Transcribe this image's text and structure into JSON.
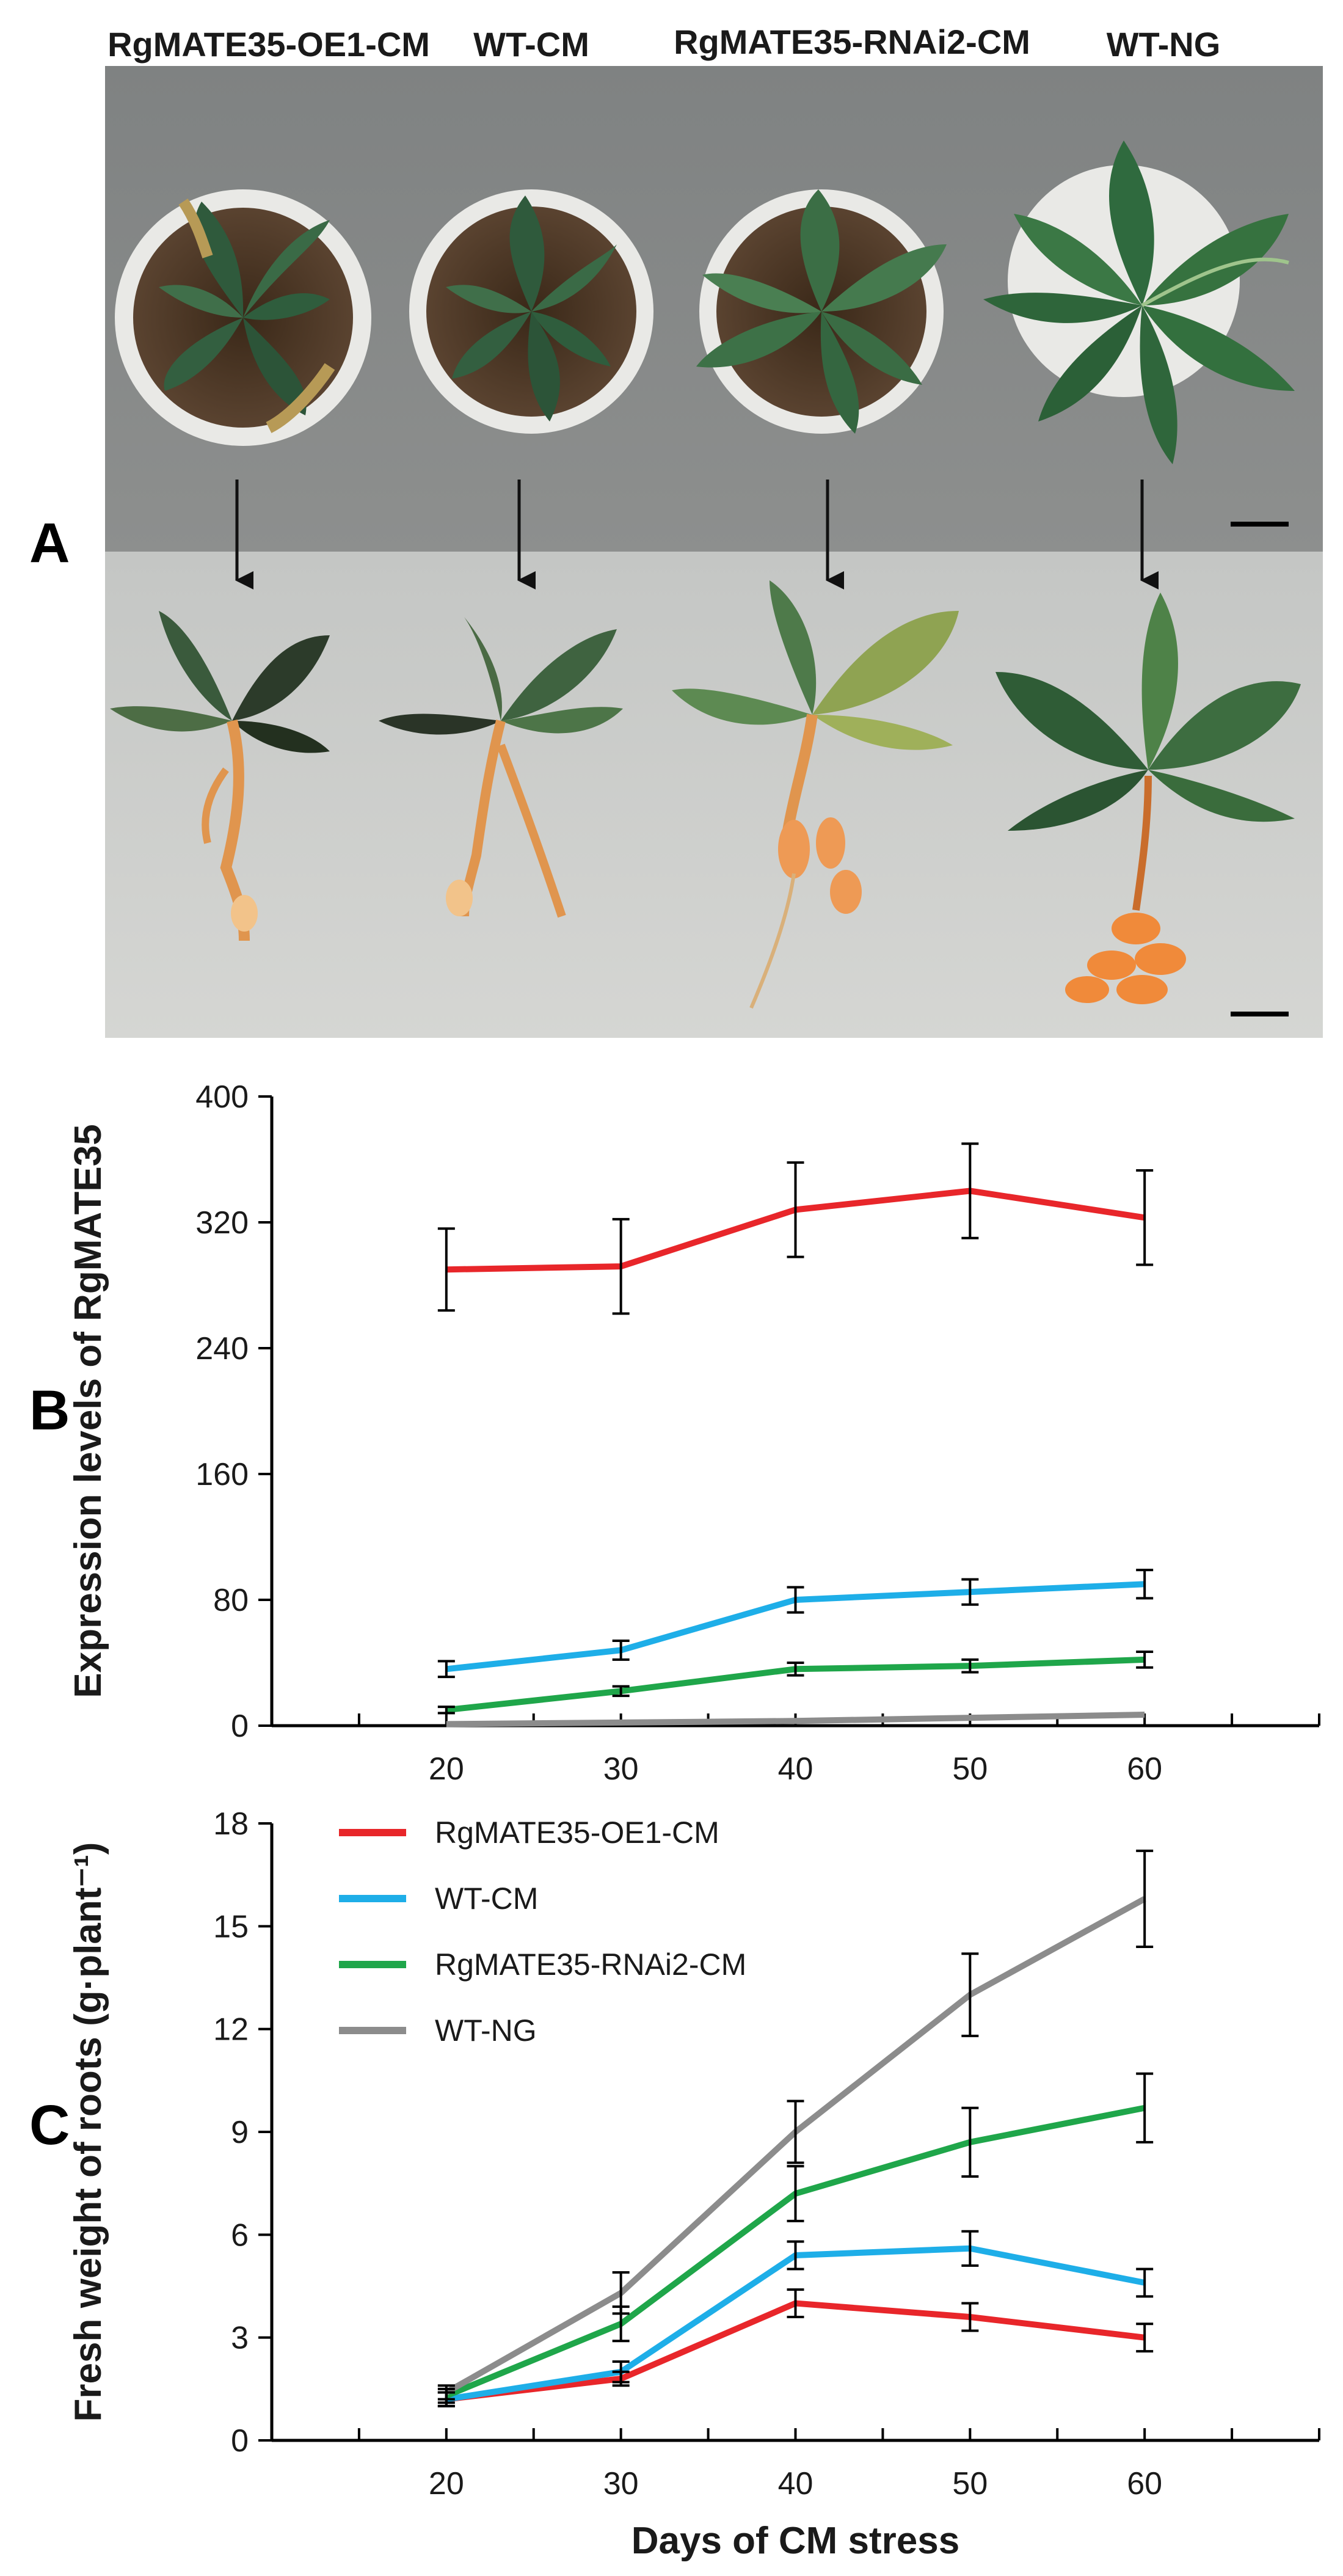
{
  "panel_labels": {
    "a": "A",
    "b": "B",
    "c": "C"
  },
  "photo_panel": {
    "genotypes": [
      "RgMATE35-OE1-CM",
      "WT-CM",
      "RgMATE35-RNAi2-CM",
      "WT-NG"
    ]
  },
  "chart_data": [
    {
      "type": "line",
      "panel": "B",
      "x": [
        20,
        30,
        40,
        50,
        60
      ],
      "ylabel": "Expression levels of RgMATE35",
      "xlabel": "",
      "ylim": [
        0,
        400
      ],
      "yticks": [
        0,
        80,
        160,
        240,
        320,
        400
      ],
      "series": [
        {
          "name": "RgMATE35-OE1-CM",
          "color": "#e8262a",
          "values": [
            290,
            292,
            328,
            340,
            323
          ],
          "errors": [
            26,
            30,
            30,
            30,
            30
          ]
        },
        {
          "name": "WT-CM",
          "color": "#1eaee8",
          "values": [
            36,
            48,
            80,
            85,
            90
          ],
          "errors": [
            5,
            6,
            8,
            8,
            9
          ]
        },
        {
          "name": "RgMATE35-RNAi2-CM",
          "color": "#1fa64a",
          "values": [
            10,
            22,
            36,
            38,
            42
          ],
          "errors": [
            2,
            3,
            4,
            4,
            5
          ]
        },
        {
          "name": "WT-NG",
          "color": "#8c8c8c",
          "values": [
            1,
            2,
            3,
            5,
            7
          ],
          "errors": [
            0,
            0,
            0,
            0,
            0
          ]
        }
      ]
    },
    {
      "type": "line",
      "panel": "C",
      "x": [
        20,
        30,
        40,
        50,
        60
      ],
      "xlabel": "Days of CM stress",
      "ylabel": "Fresh weight of roots (g·plant⁻¹)",
      "ylim": [
        0,
        18
      ],
      "yticks": [
        0,
        3,
        6,
        9,
        12,
        15,
        18
      ],
      "legend_position": "top-left",
      "series": [
        {
          "name": "RgMATE35-OE1-CM",
          "color": "#e8262a",
          "values": [
            1.2,
            1.8,
            4.0,
            3.6,
            3.0
          ],
          "errors": [
            0.2,
            0.2,
            0.4,
            0.4,
            0.4
          ]
        },
        {
          "name": "WT-CM",
          "color": "#1eaee8",
          "values": [
            1.2,
            2.0,
            5.4,
            5.6,
            4.6
          ],
          "errors": [
            0.2,
            0.3,
            0.4,
            0.5,
            0.4
          ]
        },
        {
          "name": "RgMATE35-RNAi2-CM",
          "color": "#1fa64a",
          "values": [
            1.3,
            3.4,
            7.2,
            8.7,
            9.7
          ],
          "errors": [
            0.2,
            0.5,
            0.8,
            1.0,
            1.0
          ]
        },
        {
          "name": "WT-NG",
          "color": "#8c8c8c",
          "values": [
            1.4,
            4.3,
            9.0,
            13.0,
            15.8
          ],
          "errors": [
            0.2,
            0.6,
            0.9,
            1.2,
            1.4
          ]
        }
      ]
    }
  ]
}
